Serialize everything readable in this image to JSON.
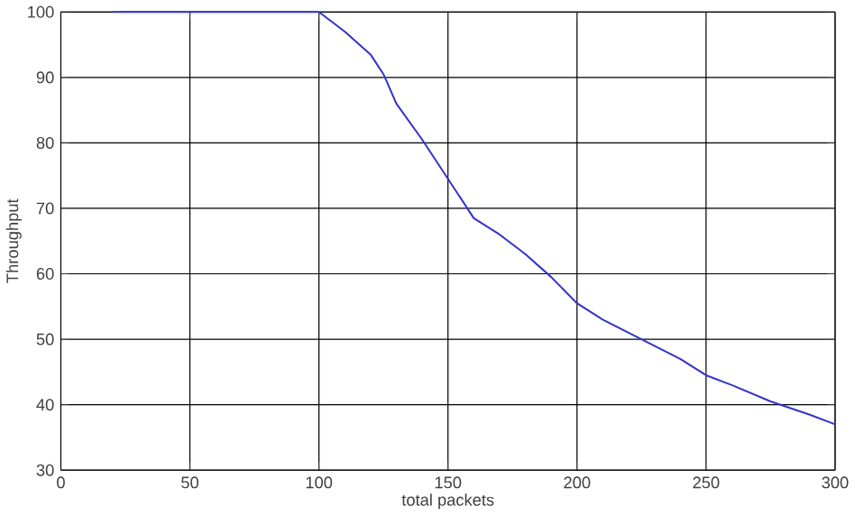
{
  "chart_data": {
    "type": "line",
    "xlabel": "total packets",
    "ylabel": "Throughput",
    "xlim": [
      0,
      300
    ],
    "ylim": [
      30,
      100
    ],
    "xticks": [
      0,
      50,
      100,
      150,
      200,
      250,
      300
    ],
    "yticks": [
      30,
      40,
      50,
      60,
      70,
      80,
      90,
      100
    ],
    "grid": true,
    "series": [
      {
        "color": "#3333cc",
        "x": [
          20,
          50,
          100,
          110,
          120,
          125,
          130,
          140,
          150,
          160,
          170,
          180,
          190,
          200,
          210,
          225,
          240,
          250,
          260,
          275,
          290,
          300
        ],
        "values": [
          100,
          100,
          100,
          97,
          93.5,
          90.5,
          86,
          80.5,
          74.5,
          68.5,
          66,
          63,
          59.5,
          55.5,
          53,
          50,
          47,
          44.5,
          43,
          40.5,
          38.5,
          37
        ]
      }
    ]
  }
}
